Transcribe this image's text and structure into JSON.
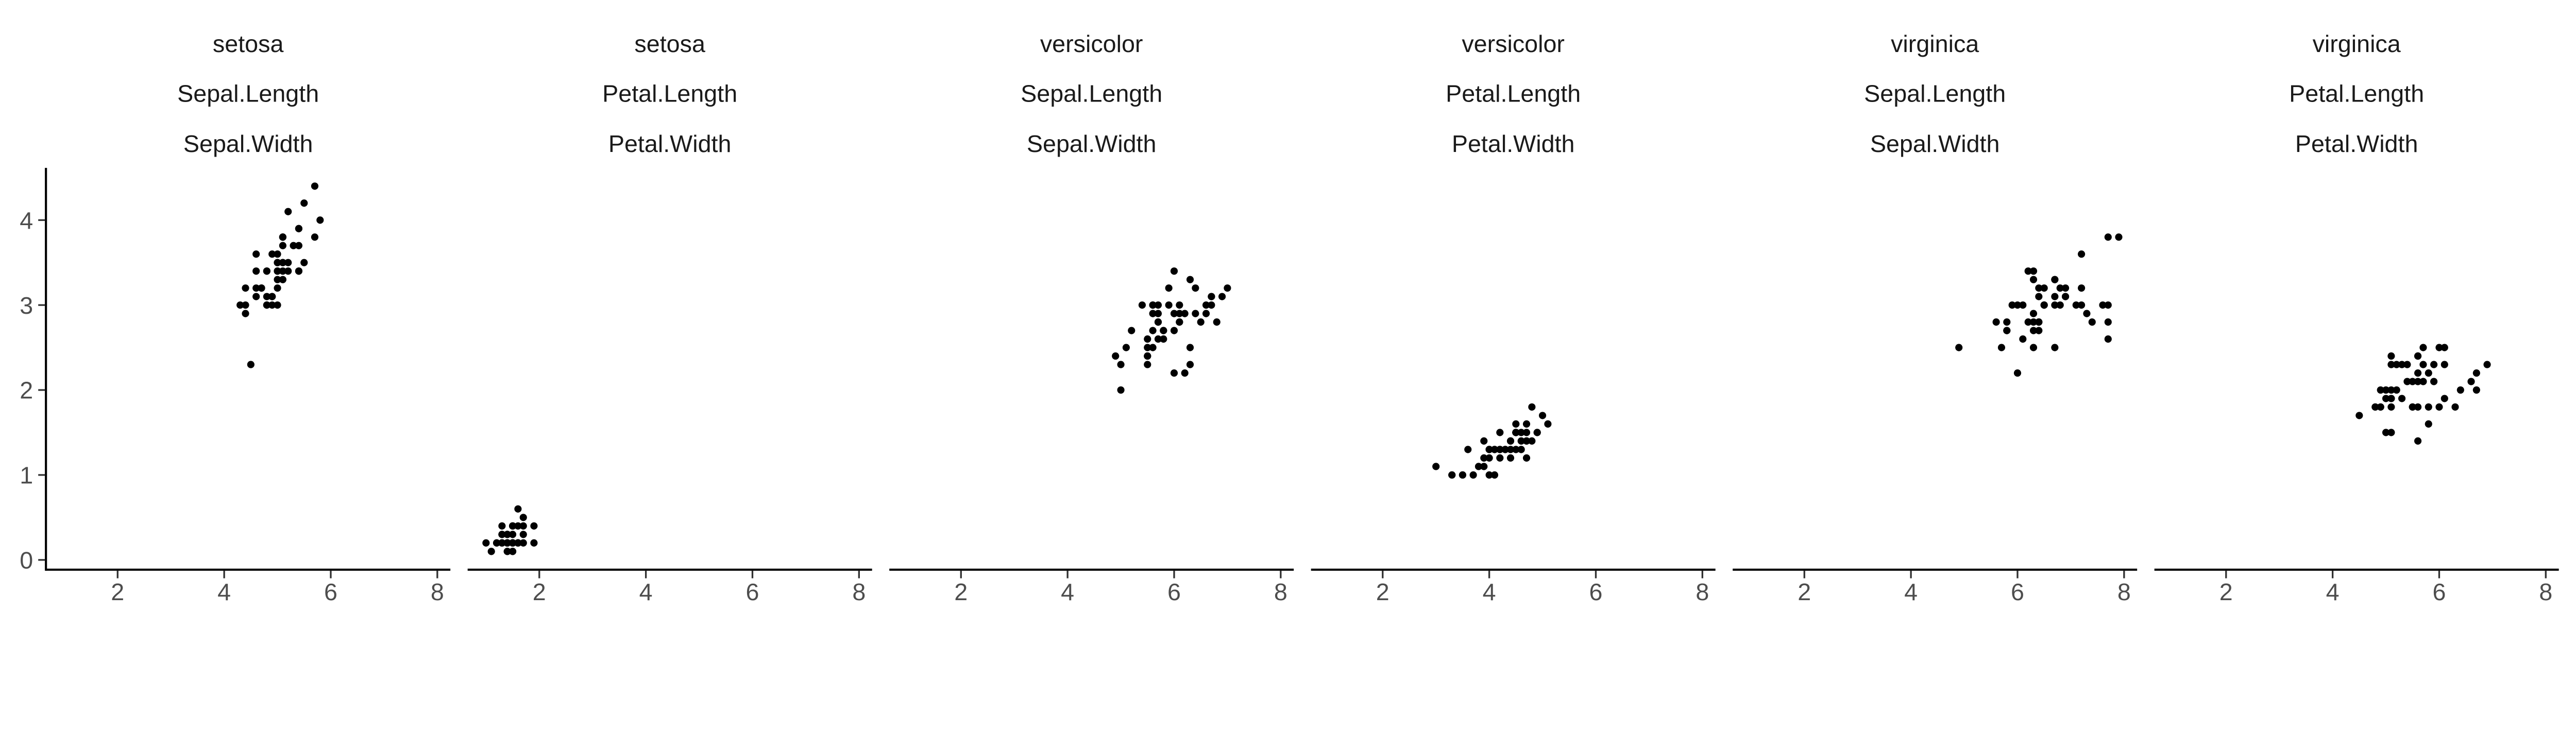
{
  "chart_data": {
    "type": "scatter",
    "title": "",
    "xlabel": "",
    "ylabel": "",
    "xlim": [
      0.655,
      8.245
    ],
    "ylim": [
      -0.115,
      4.615
    ],
    "x_ticks": [
      2,
      4,
      6,
      8
    ],
    "y_ticks": [
      0,
      1,
      2,
      3,
      4
    ],
    "grid": false,
    "point_color": "#000000",
    "facets": [
      {
        "strip": [
          "setosa",
          "Sepal.Length",
          "Sepal.Width"
        ],
        "points": [
          [
            5.1,
            3.5
          ],
          [
            4.9,
            3.0
          ],
          [
            4.7,
            3.2
          ],
          [
            4.6,
            3.1
          ],
          [
            5.0,
            3.6
          ],
          [
            5.4,
            3.9
          ],
          [
            4.6,
            3.4
          ],
          [
            5.0,
            3.4
          ],
          [
            4.4,
            2.9
          ],
          [
            4.9,
            3.1
          ],
          [
            5.4,
            3.7
          ],
          [
            4.8,
            3.4
          ],
          [
            4.8,
            3.0
          ],
          [
            4.3,
            3.0
          ],
          [
            5.8,
            4.0
          ],
          [
            5.7,
            4.4
          ],
          [
            5.4,
            3.9
          ],
          [
            5.1,
            3.5
          ],
          [
            5.7,
            3.8
          ],
          [
            5.1,
            3.8
          ],
          [
            5.4,
            3.4
          ],
          [
            5.1,
            3.7
          ],
          [
            4.6,
            3.6
          ],
          [
            5.1,
            3.3
          ],
          [
            4.8,
            3.4
          ],
          [
            5.0,
            3.0
          ],
          [
            5.0,
            3.4
          ],
          [
            5.2,
            3.5
          ],
          [
            5.2,
            3.4
          ],
          [
            4.7,
            3.2
          ],
          [
            4.8,
            3.1
          ],
          [
            5.4,
            3.4
          ],
          [
            5.2,
            4.1
          ],
          [
            5.5,
            4.2
          ],
          [
            4.9,
            3.1
          ],
          [
            5.0,
            3.2
          ],
          [
            5.5,
            3.5
          ],
          [
            4.9,
            3.6
          ],
          [
            4.4,
            3.0
          ],
          [
            5.1,
            3.4
          ],
          [
            5.0,
            3.5
          ],
          [
            4.5,
            2.3
          ],
          [
            4.4,
            3.2
          ],
          [
            5.0,
            3.5
          ],
          [
            5.1,
            3.8
          ],
          [
            4.8,
            3.0
          ],
          [
            5.1,
            3.8
          ],
          [
            4.6,
            3.2
          ],
          [
            5.3,
            3.7
          ],
          [
            5.0,
            3.3
          ]
        ]
      },
      {
        "strip": [
          "setosa",
          "Petal.Length",
          "Petal.Width"
        ],
        "points": [
          [
            1.4,
            0.2
          ],
          [
            1.4,
            0.2
          ],
          [
            1.3,
            0.2
          ],
          [
            1.5,
            0.2
          ],
          [
            1.4,
            0.2
          ],
          [
            1.7,
            0.4
          ],
          [
            1.4,
            0.3
          ],
          [
            1.5,
            0.2
          ],
          [
            1.4,
            0.2
          ],
          [
            1.5,
            0.1
          ],
          [
            1.5,
            0.2
          ],
          [
            1.6,
            0.2
          ],
          [
            1.4,
            0.1
          ],
          [
            1.1,
            0.1
          ],
          [
            1.2,
            0.2
          ],
          [
            1.5,
            0.4
          ],
          [
            1.3,
            0.4
          ],
          [
            1.4,
            0.3
          ],
          [
            1.7,
            0.3
          ],
          [
            1.5,
            0.3
          ],
          [
            1.7,
            0.2
          ],
          [
            1.5,
            0.4
          ],
          [
            1.0,
            0.2
          ],
          [
            1.7,
            0.5
          ],
          [
            1.9,
            0.2
          ],
          [
            1.6,
            0.2
          ],
          [
            1.6,
            0.4
          ],
          [
            1.5,
            0.2
          ],
          [
            1.4,
            0.2
          ],
          [
            1.6,
            0.2
          ],
          [
            1.6,
            0.2
          ],
          [
            1.5,
            0.4
          ],
          [
            1.5,
            0.1
          ],
          [
            1.4,
            0.2
          ],
          [
            1.5,
            0.2
          ],
          [
            1.2,
            0.2
          ],
          [
            1.3,
            0.2
          ],
          [
            1.4,
            0.1
          ],
          [
            1.3,
            0.2
          ],
          [
            1.5,
            0.2
          ],
          [
            1.3,
            0.3
          ],
          [
            1.3,
            0.3
          ],
          [
            1.3,
            0.2
          ],
          [
            1.6,
            0.6
          ],
          [
            1.9,
            0.4
          ],
          [
            1.4,
            0.3
          ],
          [
            1.6,
            0.2
          ],
          [
            1.4,
            0.2
          ],
          [
            1.5,
            0.2
          ],
          [
            1.4,
            0.2
          ]
        ]
      },
      {
        "strip": [
          "versicolor",
          "Sepal.Length",
          "Sepal.Width"
        ],
        "points": [
          [
            7.0,
            3.2
          ],
          [
            6.4,
            3.2
          ],
          [
            6.9,
            3.1
          ],
          [
            5.5,
            2.3
          ],
          [
            6.5,
            2.8
          ],
          [
            5.7,
            2.8
          ],
          [
            6.3,
            3.3
          ],
          [
            4.9,
            2.4
          ],
          [
            6.6,
            2.9
          ],
          [
            5.2,
            2.7
          ],
          [
            5.0,
            2.0
          ],
          [
            5.9,
            3.0
          ],
          [
            6.0,
            2.2
          ],
          [
            6.1,
            2.9
          ],
          [
            5.6,
            2.9
          ],
          [
            6.7,
            3.1
          ],
          [
            5.6,
            3.0
          ],
          [
            5.8,
            2.7
          ],
          [
            6.2,
            2.2
          ],
          [
            5.6,
            2.5
          ],
          [
            5.9,
            3.2
          ],
          [
            6.1,
            2.8
          ],
          [
            6.3,
            2.5
          ],
          [
            6.1,
            2.8
          ],
          [
            6.4,
            2.9
          ],
          [
            6.6,
            3.0
          ],
          [
            6.8,
            2.8
          ],
          [
            6.7,
            3.0
          ],
          [
            6.0,
            2.9
          ],
          [
            5.7,
            2.6
          ],
          [
            5.5,
            2.4
          ],
          [
            5.5,
            2.4
          ],
          [
            5.8,
            2.7
          ],
          [
            6.0,
            2.7
          ],
          [
            5.4,
            3.0
          ],
          [
            6.0,
            3.4
          ],
          [
            6.7,
            3.1
          ],
          [
            6.3,
            2.3
          ],
          [
            5.6,
            3.0
          ],
          [
            5.5,
            2.5
          ],
          [
            5.5,
            2.6
          ],
          [
            6.1,
            3.0
          ],
          [
            5.8,
            2.6
          ],
          [
            5.0,
            2.3
          ],
          [
            5.6,
            2.7
          ],
          [
            5.7,
            3.0
          ],
          [
            5.7,
            2.9
          ],
          [
            6.2,
            2.9
          ],
          [
            5.1,
            2.5
          ],
          [
            5.7,
            2.8
          ]
        ]
      },
      {
        "strip": [
          "versicolor",
          "Petal.Length",
          "Petal.Width"
        ],
        "points": [
          [
            4.7,
            1.4
          ],
          [
            4.5,
            1.5
          ],
          [
            4.9,
            1.5
          ],
          [
            4.0,
            1.3
          ],
          [
            4.6,
            1.5
          ],
          [
            4.5,
            1.3
          ],
          [
            4.7,
            1.6
          ],
          [
            3.3,
            1.0
          ],
          [
            4.6,
            1.3
          ],
          [
            3.9,
            1.4
          ],
          [
            3.5,
            1.0
          ],
          [
            4.2,
            1.5
          ],
          [
            4.0,
            1.0
          ],
          [
            4.7,
            1.4
          ],
          [
            3.6,
            1.3
          ],
          [
            4.4,
            1.4
          ],
          [
            4.5,
            1.5
          ],
          [
            4.1,
            1.0
          ],
          [
            4.5,
            1.5
          ],
          [
            3.9,
            1.1
          ],
          [
            4.8,
            1.8
          ],
          [
            4.0,
            1.3
          ],
          [
            4.9,
            1.5
          ],
          [
            4.7,
            1.2
          ],
          [
            4.3,
            1.3
          ],
          [
            4.4,
            1.4
          ],
          [
            4.8,
            1.4
          ],
          [
            5.0,
            1.7
          ],
          [
            4.5,
            1.5
          ],
          [
            3.5,
            1.0
          ],
          [
            3.8,
            1.1
          ],
          [
            3.7,
            1.0
          ],
          [
            3.9,
            1.2
          ],
          [
            5.1,
            1.6
          ],
          [
            4.5,
            1.5
          ],
          [
            4.5,
            1.6
          ],
          [
            4.7,
            1.5
          ],
          [
            4.4,
            1.3
          ],
          [
            4.1,
            1.3
          ],
          [
            4.0,
            1.3
          ],
          [
            4.4,
            1.2
          ],
          [
            4.6,
            1.4
          ],
          [
            4.0,
            1.2
          ],
          [
            3.3,
            1.0
          ],
          [
            4.2,
            1.3
          ],
          [
            4.2,
            1.2
          ],
          [
            4.2,
            1.3
          ],
          [
            4.3,
            1.3
          ],
          [
            3.0,
            1.1
          ],
          [
            4.1,
            1.3
          ]
        ]
      },
      {
        "strip": [
          "virginica",
          "Sepal.Length",
          "Sepal.Width"
        ],
        "points": [
          [
            6.3,
            3.3
          ],
          [
            5.8,
            2.7
          ],
          [
            7.1,
            3.0
          ],
          [
            6.3,
            2.9
          ],
          [
            6.5,
            3.0
          ],
          [
            7.6,
            3.0
          ],
          [
            4.9,
            2.5
          ],
          [
            7.3,
            2.9
          ],
          [
            6.7,
            2.5
          ],
          [
            7.2,
            3.6
          ],
          [
            6.5,
            3.2
          ],
          [
            6.4,
            2.7
          ],
          [
            6.8,
            3.0
          ],
          [
            5.7,
            2.5
          ],
          [
            5.8,
            2.8
          ],
          [
            6.4,
            3.2
          ],
          [
            6.5,
            3.0
          ],
          [
            7.7,
            3.8
          ],
          [
            7.7,
            2.6
          ],
          [
            6.0,
            2.2
          ],
          [
            6.9,
            3.2
          ],
          [
            5.6,
            2.8
          ],
          [
            7.7,
            2.8
          ],
          [
            6.3,
            2.7
          ],
          [
            6.7,
            3.3
          ],
          [
            7.2,
            3.2
          ],
          [
            6.2,
            2.8
          ],
          [
            6.1,
            3.0
          ],
          [
            6.4,
            2.8
          ],
          [
            7.2,
            3.0
          ],
          [
            7.4,
            2.8
          ],
          [
            7.9,
            3.8
          ],
          [
            6.4,
            2.8
          ],
          [
            6.3,
            2.8
          ],
          [
            6.1,
            2.6
          ],
          [
            7.7,
            3.0
          ],
          [
            6.3,
            3.4
          ],
          [
            6.4,
            3.1
          ],
          [
            6.0,
            3.0
          ],
          [
            6.9,
            3.1
          ],
          [
            6.7,
            3.1
          ],
          [
            6.9,
            3.1
          ],
          [
            5.8,
            2.7
          ],
          [
            6.8,
            3.2
          ],
          [
            6.7,
            3.3
          ],
          [
            6.7,
            3.0
          ],
          [
            6.3,
            2.5
          ],
          [
            6.5,
            3.0
          ],
          [
            6.2,
            3.4
          ],
          [
            5.9,
            3.0
          ]
        ]
      },
      {
        "strip": [
          "virginica",
          "Petal.Length",
          "Petal.Width"
        ],
        "points": [
          [
            6.0,
            2.5
          ],
          [
            5.1,
            1.9
          ],
          [
            5.9,
            2.1
          ],
          [
            5.6,
            1.8
          ],
          [
            5.8,
            2.2
          ],
          [
            6.6,
            2.1
          ],
          [
            4.5,
            1.7
          ],
          [
            6.3,
            1.8
          ],
          [
            5.8,
            1.8
          ],
          [
            6.1,
            2.5
          ],
          [
            5.1,
            2.0
          ],
          [
            5.3,
            1.9
          ],
          [
            5.5,
            2.1
          ],
          [
            5.0,
            2.0
          ],
          [
            5.1,
            2.4
          ],
          [
            5.3,
            2.3
          ],
          [
            5.5,
            1.8
          ],
          [
            6.7,
            2.2
          ],
          [
            6.9,
            2.3
          ],
          [
            5.0,
            1.5
          ],
          [
            5.7,
            2.3
          ],
          [
            4.9,
            2.0
          ],
          [
            6.7,
            2.0
          ],
          [
            4.9,
            1.8
          ],
          [
            5.7,
            2.1
          ],
          [
            6.0,
            1.8
          ],
          [
            4.8,
            1.8
          ],
          [
            4.9,
            1.8
          ],
          [
            5.6,
            2.1
          ],
          [
            5.8,
            1.6
          ],
          [
            6.1,
            1.9
          ],
          [
            6.4,
            2.0
          ],
          [
            5.6,
            2.2
          ],
          [
            5.1,
            1.5
          ],
          [
            5.6,
            1.4
          ],
          [
            6.1,
            2.3
          ],
          [
            5.6,
            2.4
          ],
          [
            5.5,
            1.8
          ],
          [
            4.8,
            1.8
          ],
          [
            5.4,
            2.1
          ],
          [
            5.6,
            2.4
          ],
          [
            5.1,
            2.3
          ],
          [
            5.1,
            1.9
          ],
          [
            5.9,
            2.3
          ],
          [
            5.7,
            2.5
          ],
          [
            5.2,
            2.3
          ],
          [
            5.0,
            1.9
          ],
          [
            5.2,
            2.0
          ],
          [
            5.4,
            2.3
          ],
          [
            5.1,
            1.8
          ]
        ]
      }
    ]
  }
}
